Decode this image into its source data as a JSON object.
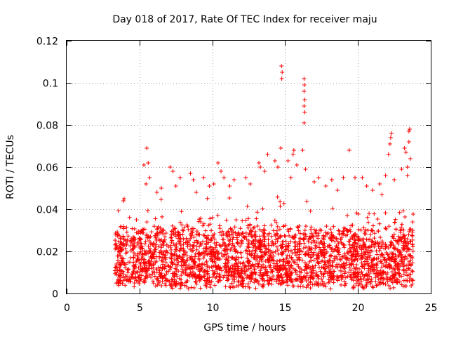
{
  "chart_data": {
    "type": "scatter",
    "title": "Day 018 of 2017, Rate Of TEC Index for receiver maju",
    "xlabel": "GPS time / hours",
    "ylabel": "ROTI / TECUs",
    "xlim": [
      0,
      25
    ],
    "ylim": [
      0,
      0.12
    ],
    "xticks": [
      0,
      5,
      10,
      15,
      20,
      25
    ],
    "xtick_labels": [
      "0",
      "5",
      "10",
      "15",
      "20",
      "25"
    ],
    "yticks": [
      0,
      0.02,
      0.04,
      0.06,
      0.08,
      0.1,
      0.12
    ],
    "ytick_labels": [
      "0",
      "0.02",
      "0.04",
      "0.06",
      "0.08",
      "0.1",
      "0.12"
    ],
    "grid": true,
    "marker": "+",
    "color": "#ff0000",
    "x_range_of_data": [
      3.3,
      23.8
    ],
    "dense_band": [
      0.005,
      0.03
    ],
    "series": [
      {
        "name": "ROTI",
        "points": [
          [
            3.9,
            0.044
          ],
          [
            3.95,
            0.045
          ],
          [
            5.3,
            0.061
          ],
          [
            5.5,
            0.069
          ],
          [
            5.6,
            0.062
          ],
          [
            5.45,
            0.052
          ],
          [
            5.7,
            0.055
          ],
          [
            6.2,
            0.048
          ],
          [
            6.5,
            0.05
          ],
          [
            7.1,
            0.06
          ],
          [
            7.3,
            0.058
          ],
          [
            7.5,
            0.051
          ],
          [
            7.8,
            0.055
          ],
          [
            8.5,
            0.057
          ],
          [
            8.7,
            0.054
          ],
          [
            8.9,
            0.048
          ],
          [
            9.4,
            0.055
          ],
          [
            9.8,
            0.051
          ],
          [
            10.1,
            0.052
          ],
          [
            10.4,
            0.062
          ],
          [
            10.6,
            0.058
          ],
          [
            10.8,
            0.055
          ],
          [
            11.2,
            0.051
          ],
          [
            11.5,
            0.054
          ],
          [
            12.3,
            0.055
          ],
          [
            12.6,
            0.052
          ],
          [
            13.2,
            0.062
          ],
          [
            13.3,
            0.06
          ],
          [
            13.6,
            0.058
          ],
          [
            13.8,
            0.066
          ],
          [
            14.3,
            0.063
          ],
          [
            14.5,
            0.06
          ],
          [
            14.7,
            0.069
          ],
          [
            14.75,
            0.108
          ],
          [
            14.8,
            0.105
          ],
          [
            14.77,
            0.102
          ],
          [
            15.2,
            0.063
          ],
          [
            15.4,
            0.055
          ],
          [
            15.55,
            0.066
          ],
          [
            15.6,
            0.068
          ],
          [
            15.8,
            0.061
          ],
          [
            16.2,
            0.068
          ],
          [
            16.3,
            0.102
          ],
          [
            16.32,
            0.099
          ],
          [
            16.3,
            0.096
          ],
          [
            16.35,
            0.092
          ],
          [
            16.3,
            0.089
          ],
          [
            16.35,
            0.086
          ],
          [
            16.3,
            0.081
          ],
          [
            16.4,
            0.059
          ],
          [
            17.0,
            0.053
          ],
          [
            17.3,
            0.055
          ],
          [
            17.8,
            0.051
          ],
          [
            18.2,
            0.054
          ],
          [
            18.6,
            0.049
          ],
          [
            19.0,
            0.055
          ],
          [
            19.4,
            0.068
          ],
          [
            19.8,
            0.055
          ],
          [
            20.3,
            0.055
          ],
          [
            20.6,
            0.051
          ],
          [
            21.0,
            0.049
          ],
          [
            21.5,
            0.052
          ],
          [
            21.9,
            0.056
          ],
          [
            22.1,
            0.066
          ],
          [
            22.2,
            0.071
          ],
          [
            22.25,
            0.074
          ],
          [
            22.3,
            0.076
          ],
          [
            22.5,
            0.054
          ],
          [
            23.0,
            0.059
          ],
          [
            23.2,
            0.069
          ],
          [
            23.3,
            0.067
          ],
          [
            23.4,
            0.06
          ],
          [
            23.5,
            0.077
          ],
          [
            23.55,
            0.078
          ],
          [
            23.5,
            0.072
          ],
          [
            23.6,
            0.064
          ],
          [
            23.4,
            0.056
          ]
        ]
      }
    ]
  }
}
